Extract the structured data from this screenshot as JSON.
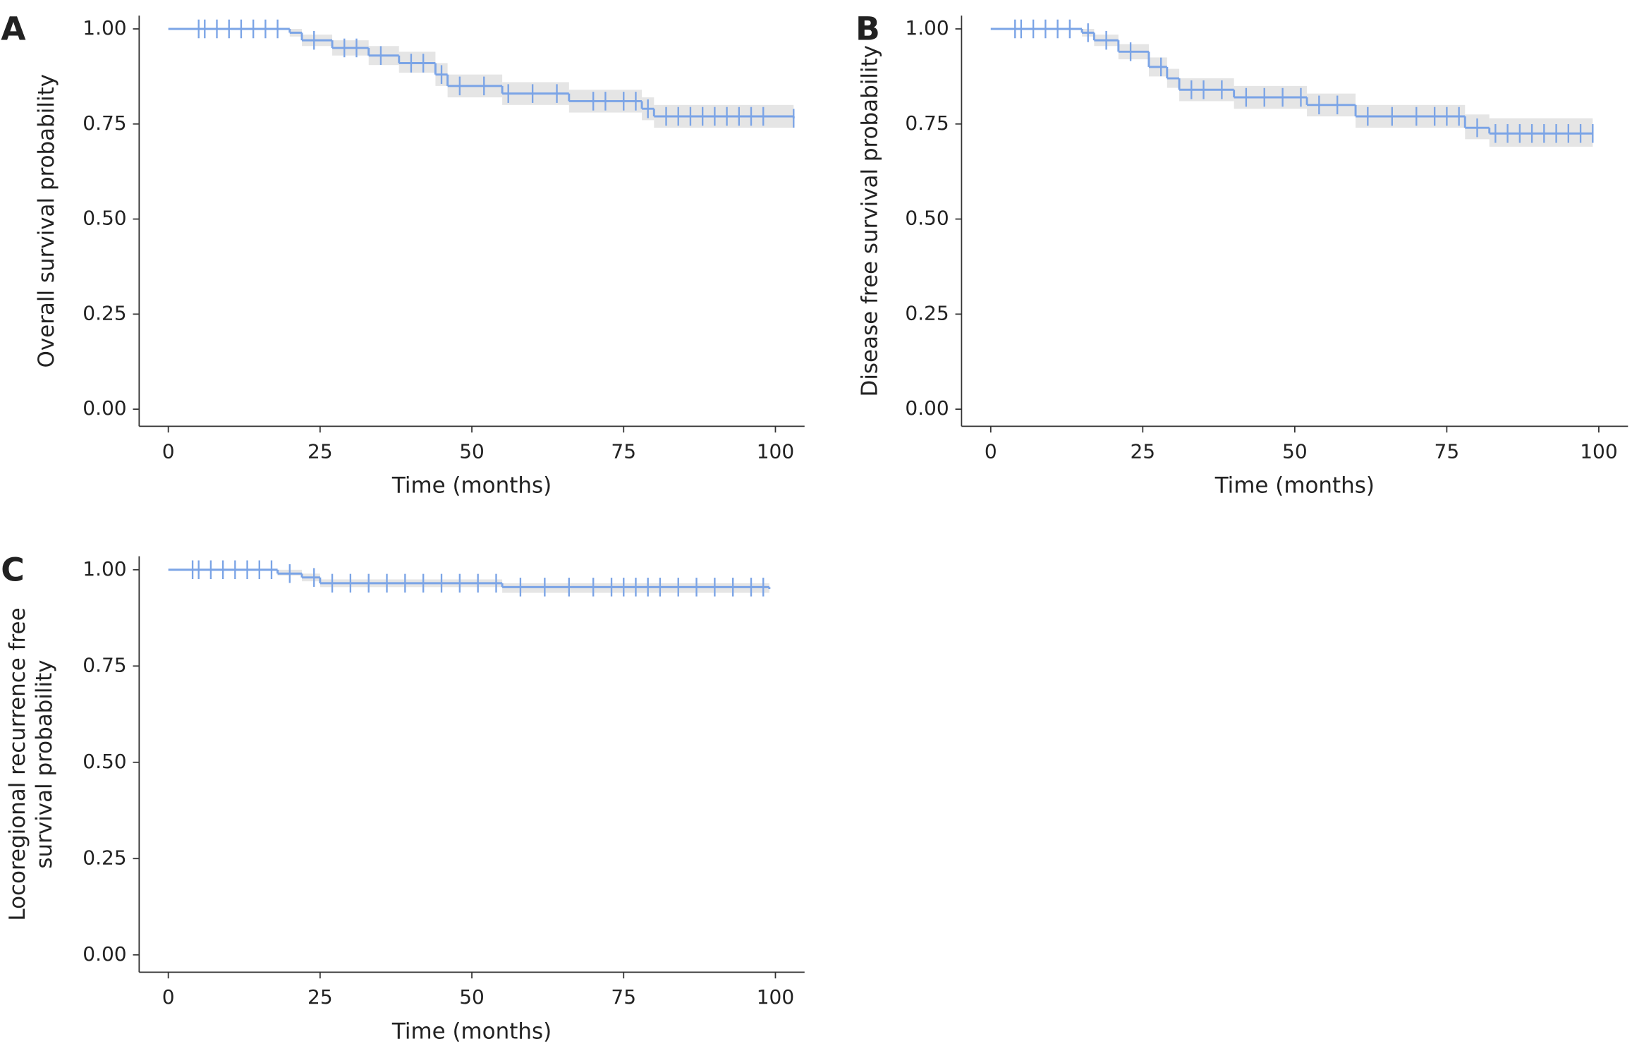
{
  "chart_data": [
    {
      "type": "km",
      "title": "A",
      "y_label": [
        "Overall survival probability"
      ],
      "x_label": "Time (months)",
      "color": "#7ba4e6",
      "band_color": "#e5e5e5",
      "xlim": [
        -4.8,
        104.8
      ],
      "ylim": [
        -0.045,
        1.035
      ],
      "xticks": [
        0,
        25,
        50,
        75,
        100
      ],
      "yticks": [
        {
          "value": 0,
          "label": "0.00"
        },
        0.25,
        {
          "value": 0.5,
          "label": "0.50"
        },
        0.75,
        {
          "value": 1,
          "label": "1.00"
        }
      ],
      "x": [
        0,
        20,
        22,
        27,
        33,
        38,
        44,
        46,
        55,
        66,
        78,
        80,
        103
      ],
      "values": [
        1.0,
        0.99,
        0.97,
        0.95,
        0.93,
        0.91,
        0.88,
        0.85,
        0.83,
        0.81,
        0.79,
        0.77,
        0.765
      ],
      "lower": [
        1.0,
        0.98,
        0.955,
        0.93,
        0.905,
        0.885,
        0.85,
        0.82,
        0.8,
        0.78,
        0.76,
        0.74,
        0.73
      ],
      "upper": [
        1.0,
        1.0,
        0.985,
        0.97,
        0.955,
        0.94,
        0.91,
        0.88,
        0.86,
        0.84,
        0.82,
        0.8,
        0.8
      ],
      "censor_x": [
        5,
        6,
        8,
        10,
        12,
        14,
        16,
        18,
        24,
        29,
        31,
        35,
        40,
        42,
        45,
        48,
        52,
        56,
        60,
        64,
        70,
        72,
        75,
        77,
        79,
        82,
        84,
        86,
        88,
        90,
        92,
        94,
        96,
        98,
        103
      ]
    },
    {
      "type": "km",
      "title": "B",
      "y_label": [
        "Disease free survival probability"
      ],
      "x_label": "Time (months)",
      "color": "#7ba4e6",
      "band_color": "#e5e5e5",
      "xlim": [
        -4.8,
        104.8
      ],
      "ylim": [
        -0.045,
        1.035
      ],
      "xticks": [
        0,
        25,
        50,
        75,
        100
      ],
      "yticks": [
        {
          "value": 0,
          "label": "0.00"
        },
        0.25,
        {
          "value": 0.5,
          "label": "0.50"
        },
        0.75,
        {
          "value": 1,
          "label": "1.00"
        }
      ],
      "x": [
        0,
        15,
        17,
        21,
        26,
        29,
        31,
        40,
        52,
        60,
        78,
        82,
        99
      ],
      "values": [
        1.0,
        0.99,
        0.97,
        0.94,
        0.9,
        0.87,
        0.84,
        0.82,
        0.8,
        0.77,
        0.74,
        0.725,
        0.725
      ],
      "lower": [
        1.0,
        0.98,
        0.955,
        0.92,
        0.875,
        0.845,
        0.81,
        0.79,
        0.77,
        0.74,
        0.71,
        0.69,
        0.69
      ],
      "upper": [
        1.0,
        1.0,
        0.985,
        0.96,
        0.925,
        0.895,
        0.87,
        0.85,
        0.83,
        0.8,
        0.775,
        0.765,
        0.765
      ],
      "censor_x": [
        4,
        5,
        7,
        9,
        11,
        13,
        16,
        19,
        23,
        28,
        33,
        35,
        38,
        42,
        45,
        48,
        51,
        54,
        57,
        62,
        66,
        70,
        73,
        75,
        77,
        80,
        83,
        85,
        87,
        89,
        91,
        93,
        95,
        97,
        99
      ]
    },
    {
      "type": "km",
      "title": "C",
      "y_label": [
        "Locoregional recurrence free",
        "survival probability"
      ],
      "x_label": "Time (months)",
      "color": "#7ba4e6",
      "band_color": "#e5e5e5",
      "xlim": [
        -4.8,
        104.8
      ],
      "ylim": [
        -0.045,
        1.035
      ],
      "xticks": [
        0,
        25,
        50,
        75,
        100
      ],
      "yticks": [
        {
          "value": 0,
          "label": "0.00"
        },
        0.25,
        {
          "value": 0.5,
          "label": "0.50"
        },
        0.75,
        {
          "value": 1,
          "label": "1.00"
        }
      ],
      "x": [
        0,
        18,
        22,
        25,
        55,
        99
      ],
      "values": [
        1.0,
        0.99,
        0.98,
        0.965,
        0.955,
        0.95
      ],
      "lower": [
        1.0,
        0.985,
        0.97,
        0.955,
        0.94,
        0.935
      ],
      "upper": [
        1.0,
        1.0,
        0.99,
        0.975,
        0.965,
        0.963
      ],
      "censor_x": [
        4,
        5,
        7,
        9,
        11,
        13,
        15,
        17,
        20,
        24,
        27,
        30,
        33,
        36,
        39,
        42,
        45,
        48,
        51,
        54,
        58,
        62,
        66,
        70,
        73,
        75,
        77,
        79,
        81,
        84,
        87,
        90,
        93,
        96,
        98
      ]
    }
  ]
}
